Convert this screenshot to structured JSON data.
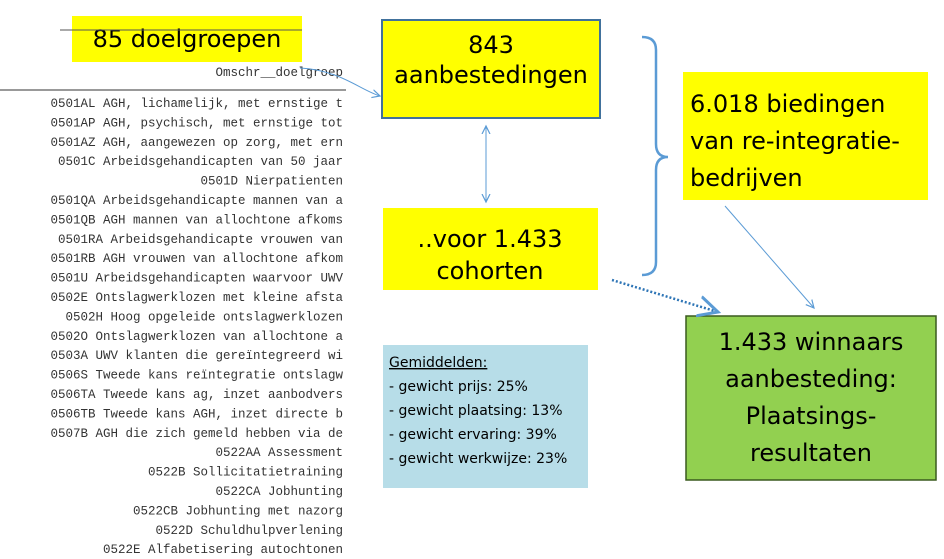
{
  "source_box": {
    "label": "85 doelgroepen"
  },
  "table": {
    "header": "Omschr__doelgroep",
    "rows": [
      "0501AL AGH, lichamelijk, met ernstige t",
      "0501AP AGH, psychisch, met ernstige tot",
      "0501AZ AGH, aangewezen op zorg, met ern",
      "0501C Arbeidsgehandicapten van 50 jaar",
      "0501D Nierpatienten",
      "0501QA Arbeidsgehandicapte mannen van a",
      "0501QB AGH mannen van allochtone afkoms",
      "0501RA Arbeidsgehandicapte vrouwen van",
      "0501RB AGH vrouwen van allochtone afkom",
      "0501U Arbeidsgehandicapten waarvoor UWV",
      "0502E Ontslagwerklozen met kleine afsta",
      "0502H Hoog opgeleide ontslagwerklozen",
      "0502O Ontslagwerklozen van allochtone a",
      "0503A UWV klanten die gereïntegreerd wi",
      "0506S Tweede kans reïntegratie ontslagw",
      "0506TA Tweede kans ag, inzet aanbodvers",
      "0506TB Tweede kans AGH, inzet directe b",
      "0507B AGH die zich gemeld hebben via de",
      "0522AA Assessment",
      "0522B Sollicitatietraining",
      "0522CA Jobhunting",
      "0522CB Jobhunting met nazorg",
      "0522D Schuldhulpverlening",
      "0522E Alfabetisering autochtonen"
    ]
  },
  "nodes": [
    {
      "lines": [
        "843",
        "aanbestedingen"
      ]
    },
    {
      "lines": [
        "..voor 1.433",
        "cohorten"
      ]
    },
    {
      "lines": [
        "6.018 biedingen",
        "van re-integratie-",
        "bedrijven"
      ]
    },
    {
      "lines": [
        "1.433 winnaars",
        "aanbesteding:",
        "Plaatsings-",
        "resultaten"
      ]
    }
  ],
  "averages": {
    "title": "Gemiddelden:",
    "lines": [
      "- gewicht prijs: 25%",
      "- gewicht plaatsing: 13%",
      "- gewicht ervaring: 39%",
      "- gewicht werkwijze: 23%"
    ]
  }
}
